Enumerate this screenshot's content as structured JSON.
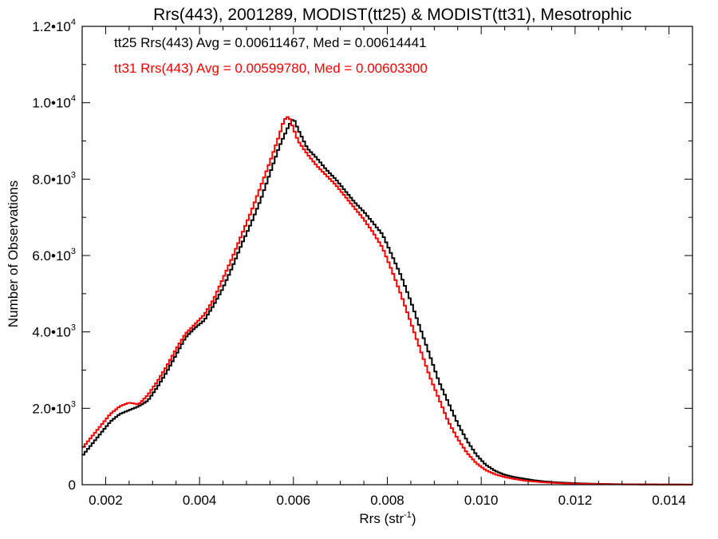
{
  "chart_data": {
    "type": "line",
    "title": "Rrs(443), 2001289, MODIST(tt25) & MODIST(tt31), Mesotrophic",
    "xlabel": "Rrs (str",
    "xlabel_sup": "-1",
    "xlabel_close": ")",
    "ylabel": "Number of Observations",
    "xlim": [
      0.0015,
      0.0145
    ],
    "ylim": [
      0,
      12000
    ],
    "grid": false,
    "x_ticks": [
      {
        "value": 0.002,
        "label": "0.002"
      },
      {
        "value": 0.004,
        "label": "0.004"
      },
      {
        "value": 0.006,
        "label": "0.006"
      },
      {
        "value": 0.008,
        "label": "0.008"
      },
      {
        "value": 0.01,
        "label": "0.010"
      },
      {
        "value": 0.012,
        "label": "0.012"
      },
      {
        "value": 0.014,
        "label": "0.014"
      }
    ],
    "y_ticks": [
      {
        "value": 0,
        "mant": "0",
        "exp": ""
      },
      {
        "value": 2000,
        "mant": "2.0•10",
        "exp": "3"
      },
      {
        "value": 4000,
        "mant": "4.0•10",
        "exp": "3"
      },
      {
        "value": 6000,
        "mant": "6.0•10",
        "exp": "3"
      },
      {
        "value": 8000,
        "mant": "8.0•10",
        "exp": "3"
      },
      {
        "value": 10000,
        "mant": "1.0•10",
        "exp": "4"
      },
      {
        "value": 12000,
        "mant": "1.2•10",
        "exp": "4"
      }
    ],
    "annotations": [
      {
        "text": "tt25 Rrs(443) Avg = 0.00611467, Med = 0.00614441",
        "color": "#000000"
      },
      {
        "text": "tt31 Rrs(443) Avg = 0.00599780, Med = 0.00603300",
        "color": "#ff0000"
      }
    ],
    "series": [
      {
        "color": "#000000",
        "x": [
          0.0015,
          0.0017,
          0.0019,
          0.0021,
          0.0023,
          0.0025,
          0.0027,
          0.0029,
          0.0031,
          0.0033,
          0.0035,
          0.0037,
          0.0039,
          0.0041,
          0.0043,
          0.0045,
          0.0047,
          0.0049,
          0.0051,
          0.0053,
          0.0055,
          0.0057,
          0.0059,
          0.006,
          0.0061,
          0.0063,
          0.0065,
          0.0067,
          0.0069,
          0.0071,
          0.0073,
          0.0075,
          0.0077,
          0.0079,
          0.0081,
          0.0083,
          0.0085,
          0.0087,
          0.0089,
          0.0091,
          0.0093,
          0.0095,
          0.0097,
          0.0099,
          0.0101,
          0.0103,
          0.0105,
          0.0107,
          0.0109,
          0.0111,
          0.0113,
          0.0115,
          0.0117,
          0.0119,
          0.0121,
          0.0123,
          0.0125,
          0.0127,
          0.013,
          0.0135,
          0.014,
          0.0145
        ],
        "y": [
          750,
          1050,
          1350,
          1650,
          1850,
          1950,
          2050,
          2200,
          2550,
          2950,
          3400,
          3850,
          4100,
          4300,
          4700,
          5150,
          5700,
          6300,
          6850,
          7450,
          8150,
          8850,
          9400,
          9600,
          9300,
          8800,
          8550,
          8250,
          8000,
          7700,
          7400,
          7150,
          6850,
          6550,
          6000,
          5450,
          4800,
          4100,
          3400,
          2700,
          2150,
          1600,
          1150,
          780,
          520,
          360,
          260,
          200,
          160,
          120,
          90,
          70,
          55,
          45,
          35,
          28,
          22,
          18,
          12,
          8,
          5,
          3
        ]
      },
      {
        "color": "#ff0000",
        "x": [
          0.0015,
          0.0017,
          0.0019,
          0.0021,
          0.0023,
          0.0025,
          0.0027,
          0.0029,
          0.0031,
          0.0033,
          0.0035,
          0.0037,
          0.0039,
          0.0041,
          0.0043,
          0.0045,
          0.0047,
          0.0049,
          0.0051,
          0.0053,
          0.0055,
          0.0057,
          0.0058,
          0.0059,
          0.0061,
          0.0063,
          0.0065,
          0.0067,
          0.0069,
          0.0071,
          0.0073,
          0.0075,
          0.0077,
          0.0079,
          0.0081,
          0.0083,
          0.0085,
          0.0087,
          0.0089,
          0.0091,
          0.0093,
          0.0095,
          0.0097,
          0.0099,
          0.0101,
          0.0103,
          0.0105,
          0.0107,
          0.0109,
          0.0111,
          0.0113,
          0.0115,
          0.0117,
          0.0119,
          0.0121,
          0.0123,
          0.0125,
          0.0127,
          0.013,
          0.0135,
          0.014,
          0.0145
        ],
        "y": [
          950,
          1250,
          1550,
          1850,
          2050,
          2150,
          2100,
          2350,
          2700,
          3100,
          3550,
          3950,
          4200,
          4450,
          4850,
          5400,
          5950,
          6550,
          7150,
          7800,
          8450,
          9150,
          9550,
          9650,
          9000,
          8650,
          8350,
          8100,
          7850,
          7550,
          7250,
          6950,
          6600,
          6200,
          5600,
          4950,
          4250,
          3550,
          2850,
          2250,
          1650,
          1200,
          830,
          560,
          380,
          270,
          200,
          150,
          110,
          85,
          65,
          50,
          40,
          32,
          25,
          20,
          16,
          12,
          9,
          6,
          4,
          2
        ]
      }
    ]
  }
}
